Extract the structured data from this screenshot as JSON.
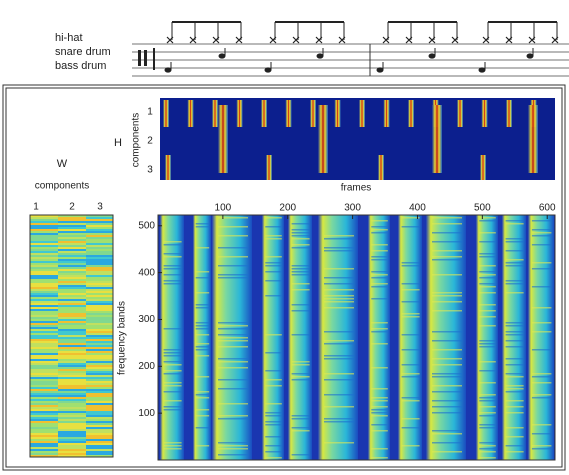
{
  "notation": {
    "instruments": [
      "hi-hat",
      "snare drum",
      "bass drum"
    ]
  },
  "H": {
    "label": "H",
    "axis_label": "components",
    "ticks": [
      1,
      2,
      3
    ],
    "x_label": "frames"
  },
  "W": {
    "label": "W",
    "axis_label": "components",
    "ticks": [
      1,
      2,
      3
    ]
  },
  "spectrogram": {
    "y_label": "frequency bands",
    "xlim": [
      0,
      612
    ],
    "ylim": [
      0,
      523
    ],
    "xticks": [
      100,
      200,
      300,
      400,
      500,
      600
    ],
    "yticks": [
      100,
      200,
      300,
      400,
      500
    ]
  }
}
